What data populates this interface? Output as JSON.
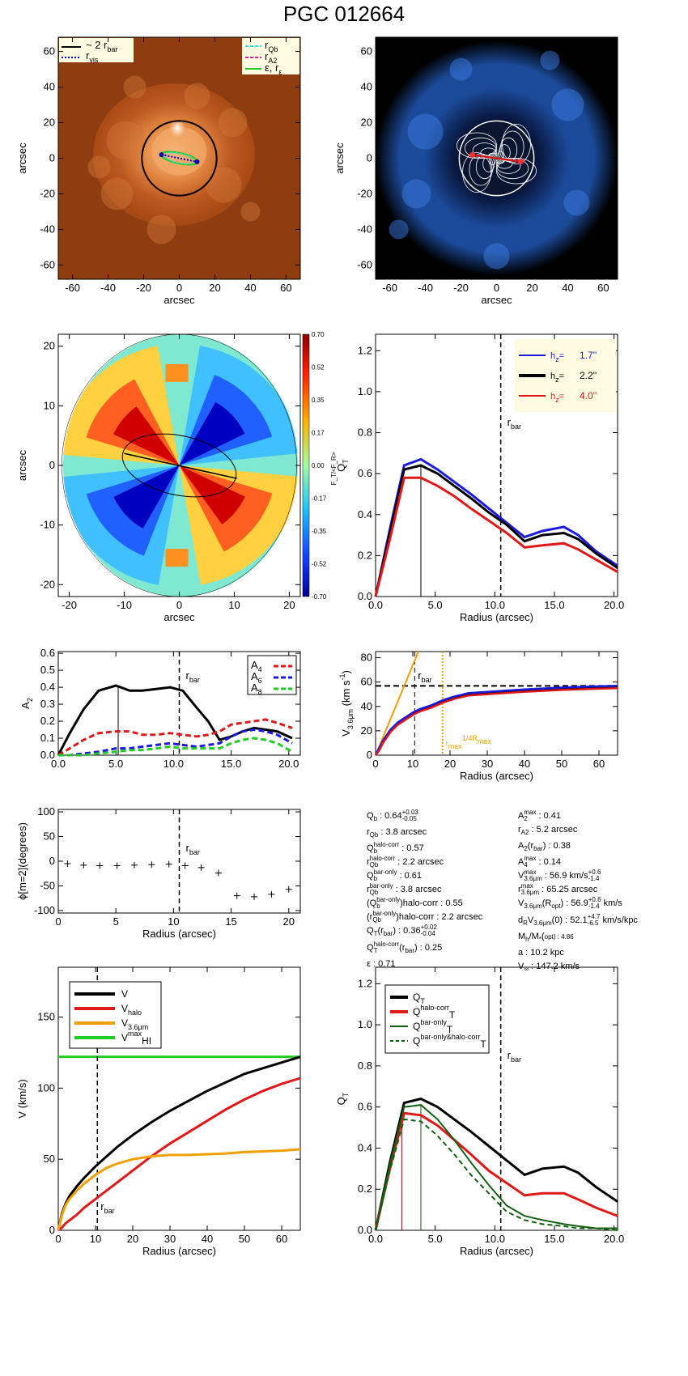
{
  "title": "PGC 012664",
  "colors": {
    "black": "#000000",
    "blue": "#1a1adf",
    "red": "#e01818",
    "green": "#22cc22",
    "orange": "#f0a000",
    "darkgreen": "#106010",
    "cyan": "#33dddd",
    "magenta": "#dd2299"
  },
  "chart_data": [
    {
      "id": "panel-image",
      "type": "image",
      "image_kind": "galaxy-map-orange",
      "xlabel": "arcsec",
      "ylabel": "arcsec",
      "xlim": [
        -68,
        68
      ],
      "ylim": [
        -68,
        68
      ],
      "xticks": [
        -60,
        -40,
        -20,
        0,
        20,
        40,
        60
      ],
      "yticks": [
        -60,
        -40,
        -20,
        0,
        20,
        40,
        60
      ],
      "legend_left": [
        "~ 2 r",
        "r"
      ],
      "legend_left_sub": [
        "bar",
        "vis"
      ],
      "legend_right": [
        "r",
        "r",
        "ε, r"
      ],
      "legend_right_sub": [
        "Qb",
        "A2",
        "ε"
      ],
      "overlays": {
        "circle_radius": 21,
        "ellipse_a": 10.5,
        "ellipse_b": 3.0,
        "ellipse_angle": -12
      }
    },
    {
      "id": "panel-force",
      "type": "image",
      "image_kind": "force-field-blue",
      "xlabel": "arcsec",
      "ylabel": "arcsec",
      "xlim": [
        -68,
        68
      ],
      "ylim": [
        -68,
        68
      ],
      "xticks": [
        -60,
        -40,
        -20,
        0,
        20,
        40,
        60
      ],
      "yticks": [
        -60,
        -40,
        -20,
        0,
        20,
        40,
        60
      ],
      "overlays": {
        "circle_radius": 21
      }
    },
    {
      "id": "panel-ratio",
      "type": "heatmap",
      "xlabel": "arcsec",
      "ylabel": "arcsec",
      "xlim": [
        -22,
        22
      ],
      "ylim": [
        -22,
        22
      ],
      "xticks": [
        -20,
        -10,
        0,
        10,
        20
      ],
      "yticks": [
        -20,
        -10,
        0,
        10,
        20
      ],
      "colorbar_label": "F_T/<F_R>",
      "colorbar_ticks": [
        "0.70",
        "0.52",
        "0.35",
        "0.17",
        "0.00",
        "-0.17",
        "-0.35",
        "-0.52",
        "-0.70"
      ],
      "overlays": {
        "ellipse_a": 10.5,
        "ellipse_b": 3.0,
        "bar_angle": -12
      }
    },
    {
      "id": "panel-qt",
      "type": "line",
      "xlabel": "Radius (arcsec)",
      "ylabel": "Q",
      "ylabel_sub": "T",
      "xlim": [
        0,
        20.3
      ],
      "ylim": [
        0,
        1.28
      ],
      "xticks": [
        0,
        5,
        10,
        15,
        20
      ],
      "yticks": [
        0.0,
        0.2,
        0.4,
        0.6,
        0.8,
        1.0,
        1.2
      ],
      "vline_label": "r",
      "vline_label_sub": "bar",
      "vline": 10.5,
      "qb_line": 3.8,
      "x": [
        0,
        1.2,
        2.4,
        3.8,
        5.2,
        6.6,
        8,
        9.5,
        11,
        12.5,
        14,
        15.8,
        17,
        18.5,
        20.3
      ],
      "series": [
        {
          "name": "1.7''",
          "color": "#1a1adf",
          "values": [
            0,
            0.33,
            0.64,
            0.67,
            0.62,
            0.56,
            0.5,
            0.43,
            0.36,
            0.29,
            0.32,
            0.34,
            0.3,
            0.22,
            0.15
          ]
        },
        {
          "name": "2.2''",
          "color": "#000000",
          "values": [
            0,
            0.31,
            0.62,
            0.64,
            0.6,
            0.54,
            0.48,
            0.41,
            0.35,
            0.27,
            0.3,
            0.31,
            0.28,
            0.21,
            0.14
          ]
        },
        {
          "name": "4.0''",
          "color": "#e01818",
          "values": [
            0,
            0.28,
            0.58,
            0.58,
            0.54,
            0.49,
            0.43,
            0.37,
            0.31,
            0.24,
            0.25,
            0.26,
            0.23,
            0.18,
            0.12
          ]
        }
      ],
      "legend_prefix": "h",
      "legend_prefix_sub": "z",
      "legend_sep": "="
    },
    {
      "id": "panel-a2",
      "type": "line",
      "xlabel": "",
      "ylabel": "A",
      "ylabel_sub": "2",
      "xlim": [
        0,
        21
      ],
      "ylim": [
        0,
        0.61
      ],
      "xticks": [
        0,
        5,
        10,
        15,
        20
      ],
      "yticks": [
        0.0,
        0.1,
        0.2,
        0.3,
        0.4,
        0.5,
        0.6
      ],
      "vline": 10.5,
      "vline_label": "r",
      "vline_label_sub": "bar",
      "rA2_line": 5.2,
      "x": [
        0,
        1,
        2.2,
        3.5,
        5,
        6.2,
        7.3,
        8.5,
        9.7,
        10.8,
        12,
        13,
        14,
        15,
        16,
        17,
        18,
        19,
        20.3
      ],
      "series": [
        {
          "name": "A",
          "sub": "2",
          "color": "#000000",
          "dashed": false,
          "values": [
            0,
            0.13,
            0.27,
            0.38,
            0.41,
            0.38,
            0.38,
            0.39,
            0.4,
            0.38,
            0.28,
            0.2,
            0.09,
            0.11,
            0.14,
            0.16,
            0.15,
            0.14,
            0.1
          ]
        },
        {
          "name": "A",
          "sub": "4",
          "color": "#e01818",
          "dashed": true,
          "values": [
            0,
            0.04,
            0.09,
            0.13,
            0.14,
            0.14,
            0.12,
            0.12,
            0.13,
            0.12,
            0.11,
            0.12,
            0.14,
            0.18,
            0.19,
            0.2,
            0.21,
            0.19,
            0.16
          ]
        },
        {
          "name": "A",
          "sub": "6",
          "color": "#1a1adf",
          "dashed": true,
          "values": [
            0,
            0.0,
            0.01,
            0.02,
            0.04,
            0.04,
            0.05,
            0.06,
            0.07,
            0.06,
            0.05,
            0.06,
            0.07,
            0.11,
            0.14,
            0.15,
            0.14,
            0.12,
            0.07
          ]
        },
        {
          "name": "A",
          "sub": "8",
          "color": "#22cc22",
          "dashed": true,
          "values": [
            0,
            0.0,
            0.0,
            0.01,
            0.02,
            0.03,
            0.03,
            0.04,
            0.05,
            0.04,
            0.04,
            0.04,
            0.04,
            0.07,
            0.09,
            0.1,
            0.09,
            0.07,
            0.02
          ]
        }
      ]
    },
    {
      "id": "panel-vel",
      "type": "line",
      "xlabel": "Radius (arcsec)",
      "ylabel": "V",
      "ylabel_sub": "3.6μm",
      "ylabel_unit": " (km s",
      "ylabel_sup": "-1",
      "ylabel_end": ")",
      "xlim": [
        0,
        65
      ],
      "ylim": [
        0,
        85
      ],
      "xticks": [
        0,
        10,
        20,
        30,
        40,
        50,
        60
      ],
      "yticks": [
        0,
        20,
        40,
        60,
        80
      ],
      "vline": 10.5,
      "vline_label": "r",
      "vline_label_sub": "bar",
      "hline": 56.9,
      "rmax_line": 18,
      "rmax_label": "r",
      "rmax_label_sub": "max",
      "rmax_label_sup": "1/4R",
      "rmax_label_sup_sub": "max",
      "x": [
        0,
        1,
        2,
        4,
        6,
        8,
        10,
        12,
        15,
        18,
        21,
        25,
        30,
        40,
        50,
        60,
        65
      ],
      "series": [
        {
          "name": "",
          "color": "#000000",
          "values": [
            0,
            5,
            11,
            20,
            26,
            30,
            34,
            37,
            40,
            44,
            47,
            50,
            51,
            53,
            54.5,
            55.5,
            56
          ]
        },
        {
          "name": "",
          "color": "#1a1adf",
          "values": [
            0,
            6,
            12,
            21,
            27,
            31,
            35,
            38,
            41,
            45,
            48,
            51,
            52,
            54,
            55.5,
            56.5,
            57
          ]
        },
        {
          "name": "",
          "color": "#e01818",
          "values": [
            0,
            4,
            10,
            19,
            25,
            29,
            33,
            36,
            39,
            43,
            46,
            49,
            50,
            52,
            53.5,
            54.5,
            55
          ]
        }
      ],
      "orange_line": {
        "x": [
          0,
          11.5
        ],
        "y": [
          0,
          85
        ]
      }
    },
    {
      "id": "panel-phase",
      "type": "scatter",
      "xlabel": "Radius (arcsec)",
      "ylabel": "ϕ[m=2](degrees)",
      "xlim": [
        0,
        21
      ],
      "ylim": [
        -105,
        105
      ],
      "xticks": [
        0,
        5,
        10,
        15,
        20
      ],
      "yticks": [
        -100,
        -50,
        0,
        50,
        100
      ],
      "vline": 10.5,
      "vline_label": "r",
      "vline_label_sub": "bar",
      "x": [
        0.8,
        2.2,
        3.6,
        5.1,
        6.6,
        8.1,
        9.6,
        11.0,
        12.4,
        13.9,
        15.5,
        17.0,
        18.5,
        20.0
      ],
      "y": [
        -5,
        -8,
        -9,
        -9,
        -8,
        -7,
        -6,
        -9,
        -13,
        -24,
        -70,
        -72,
        -67,
        -57
      ]
    },
    {
      "id": "panel-vcomp",
      "type": "line",
      "xlabel": "Radius (arcsec)",
      "ylabel": "V (km/s)",
      "xlim": [
        0,
        65
      ],
      "ylim": [
        0,
        185
      ],
      "xticks": [
        0,
        10,
        20,
        30,
        40,
        50,
        60
      ],
      "yticks": [
        0,
        50,
        100,
        150
      ],
      "vline": 10.5,
      "vline_label": "r",
      "vline_label_sub": "bar",
      "x": [
        0,
        1,
        2,
        3,
        5,
        7,
        10,
        13,
        16,
        20,
        25,
        30,
        35,
        40,
        45,
        50,
        55,
        60,
        65
      ],
      "series": [
        {
          "name": "V",
          "color": "#000000",
          "values": [
            0,
            12,
            19,
            24,
            31,
            37,
            45,
            52,
            59,
            67,
            76,
            84,
            91,
            98,
            104,
            110,
            114,
            118,
            122
          ]
        },
        {
          "name": "V",
          "sub": "halo",
          "color": "#e01818",
          "values": [
            0,
            2,
            5,
            7,
            11,
            16,
            22,
            28,
            34,
            42,
            52,
            61,
            69,
            77,
            85,
            92,
            98,
            103,
            107
          ]
        },
        {
          "name": "V",
          "sub": "3.6μm",
          "color": "#f0a000",
          "values": [
            0,
            11,
            18,
            22,
            28,
            33,
            39,
            44,
            47,
            50,
            52,
            53,
            53,
            53.5,
            54,
            55,
            55.5,
            56,
            57
          ]
        }
      ],
      "hline": {
        "name": "V",
        "sub": "HI",
        "sup": "max",
        "value": 122,
        "color": "#22cc22"
      }
    },
    {
      "id": "panel-qtcorr",
      "type": "line",
      "xlabel": "Radius (arcsec)",
      "ylabel": "Q",
      "ylabel_sub": "T",
      "xlim": [
        0,
        20.3
      ],
      "ylim": [
        0,
        1.28
      ],
      "xticks": [
        0,
        5,
        10,
        15,
        20
      ],
      "yticks": [
        0.0,
        0.2,
        0.4,
        0.6,
        0.8,
        1.0,
        1.2
      ],
      "vline": 10.5,
      "vline_label": "r",
      "vline_label_sub": "bar",
      "qb_line_red": 2.2,
      "qb_line_green": 3.8,
      "x": [
        0,
        1.2,
        2.4,
        3.8,
        5.2,
        6.6,
        8,
        9.5,
        11,
        12.5,
        14,
        15.8,
        17,
        18.5,
        20.3
      ],
      "series": [
        {
          "name": "Q",
          "sub": "T",
          "color": "#000000",
          "dashed": false,
          "values": [
            0,
            0.33,
            0.62,
            0.64,
            0.6,
            0.54,
            0.48,
            0.41,
            0.34,
            0.27,
            0.3,
            0.31,
            0.28,
            0.21,
            0.14
          ]
        },
        {
          "name": "Q",
          "sub": "T",
          "sup": "halo-corr",
          "color": "#e01818",
          "dashed": false,
          "values": [
            0,
            0.3,
            0.57,
            0.56,
            0.51,
            0.44,
            0.37,
            0.29,
            0.23,
            0.17,
            0.18,
            0.18,
            0.15,
            0.11,
            0.07
          ]
        },
        {
          "name": "Q",
          "sub": "T",
          "sup": "bar-only",
          "color": "#106010",
          "dashed": false,
          "values": [
            0,
            0.32,
            0.6,
            0.61,
            0.54,
            0.44,
            0.33,
            0.22,
            0.12,
            0.07,
            0.05,
            0.03,
            0.02,
            0.01,
            0.01
          ]
        },
        {
          "name": "Q",
          "sub": "T",
          "sup": "bar-only&halo-corr",
          "color": "#106010",
          "dashed": true,
          "values": [
            0,
            0.29,
            0.54,
            0.53,
            0.46,
            0.37,
            0.27,
            0.18,
            0.09,
            0.05,
            0.03,
            0.02,
            0.01,
            0.01,
            0.0
          ]
        }
      ]
    }
  ],
  "parameters": {
    "left": [
      {
        "main": "Q",
        "sub": "b",
        "rest": " :  0.64",
        "sup": "+0.03",
        "sub2": "-0.05"
      },
      {
        "main": "r",
        "sub": "Qb",
        "rest": " :  3.8  arcsec"
      },
      {
        "main": "Q",
        "sub": "b",
        "sup": "halo-corr",
        "rest": " :  0.57"
      },
      {
        "main": "r",
        "sub": "Qb",
        "sup": "halo-corr",
        "rest": " :  2.2 arcsec"
      },
      {
        "main": "Q",
        "sub": "b",
        "sup": "bar-only",
        "rest": " :  0.61"
      },
      {
        "main": "r",
        "sub": "Qb",
        "sup": "bar-only",
        "rest": " :  3.8 arcsec"
      },
      {
        "main": "(Q",
        "sub": "b",
        "sup": "bar-only",
        "rest": ")halo-corr :   0.55"
      },
      {
        "main": "(r",
        "sub": "Qb",
        "sup": "bar-only",
        "rest": ")halo-corr :   2.2 arcsec"
      },
      {
        "main": "Q",
        "sub": "T",
        "rest": "(r",
        "sub3": "bar",
        "rest2": ") :  0.36",
        "sup": "+0.02",
        "sub2": "-0.04"
      },
      {
        "main": "Q",
        "sub": "T",
        "sup": "halo-corr",
        "rest": "(r",
        "sub3": "bar",
        "rest2": ") :  0.25"
      },
      {
        "main": "ε",
        "rest": " :  0.71"
      }
    ],
    "right": [
      {
        "main": "A",
        "sub": "2",
        "sup": "max",
        "rest": " :  0.41"
      },
      {
        "main": "r",
        "sub": "A2",
        "rest": " :  5.2 arcsec"
      },
      {
        "main": "A",
        "sub": "2",
        "rest": "(r",
        "sub3": "bar",
        "rest2": ") :  0.38"
      },
      {
        "main": "A",
        "sub": "4",
        "sup": "max",
        "rest": " :  0.14"
      },
      {
        "main": "V",
        "sub": "3.6μm",
        "sup": "max",
        "rest": " :  56.9",
        "sup2": "+0.6",
        "sub2": "-1.4",
        "rest2": " km/s"
      },
      {
        "main": "r",
        "sub": "3.6μm",
        "sup": "max",
        "rest": " :  65.25 arcsec"
      },
      {
        "main": "V",
        "sub": "3.6μm",
        "rest": "(R",
        "sub3": "opt",
        "rest2": ") :  56.9",
        "sup2": "+0.6",
        "sub4": "-1.4",
        "rest3": " km/s"
      },
      {
        "main": "d",
        "sub": "R",
        "rest": "V",
        "sub3": "3.6μm",
        "rest2": "(0) :  52.1",
        "sup2": "+4.7",
        "sub4": "-6.5",
        "rest3": " km/s/kpc"
      },
      {
        "main": "M",
        "sub": "h",
        "rest": "/M",
        "sub3": "*",
        "rest2": "(<R",
        "sub5": "opt",
        "rest3": ") :  4.86"
      },
      {
        "main": "a",
        "rest": " :  10.2 kpc"
      },
      {
        "main": "V",
        "sub": "∞",
        "rest": " :  147.2 km/s"
      }
    ]
  }
}
